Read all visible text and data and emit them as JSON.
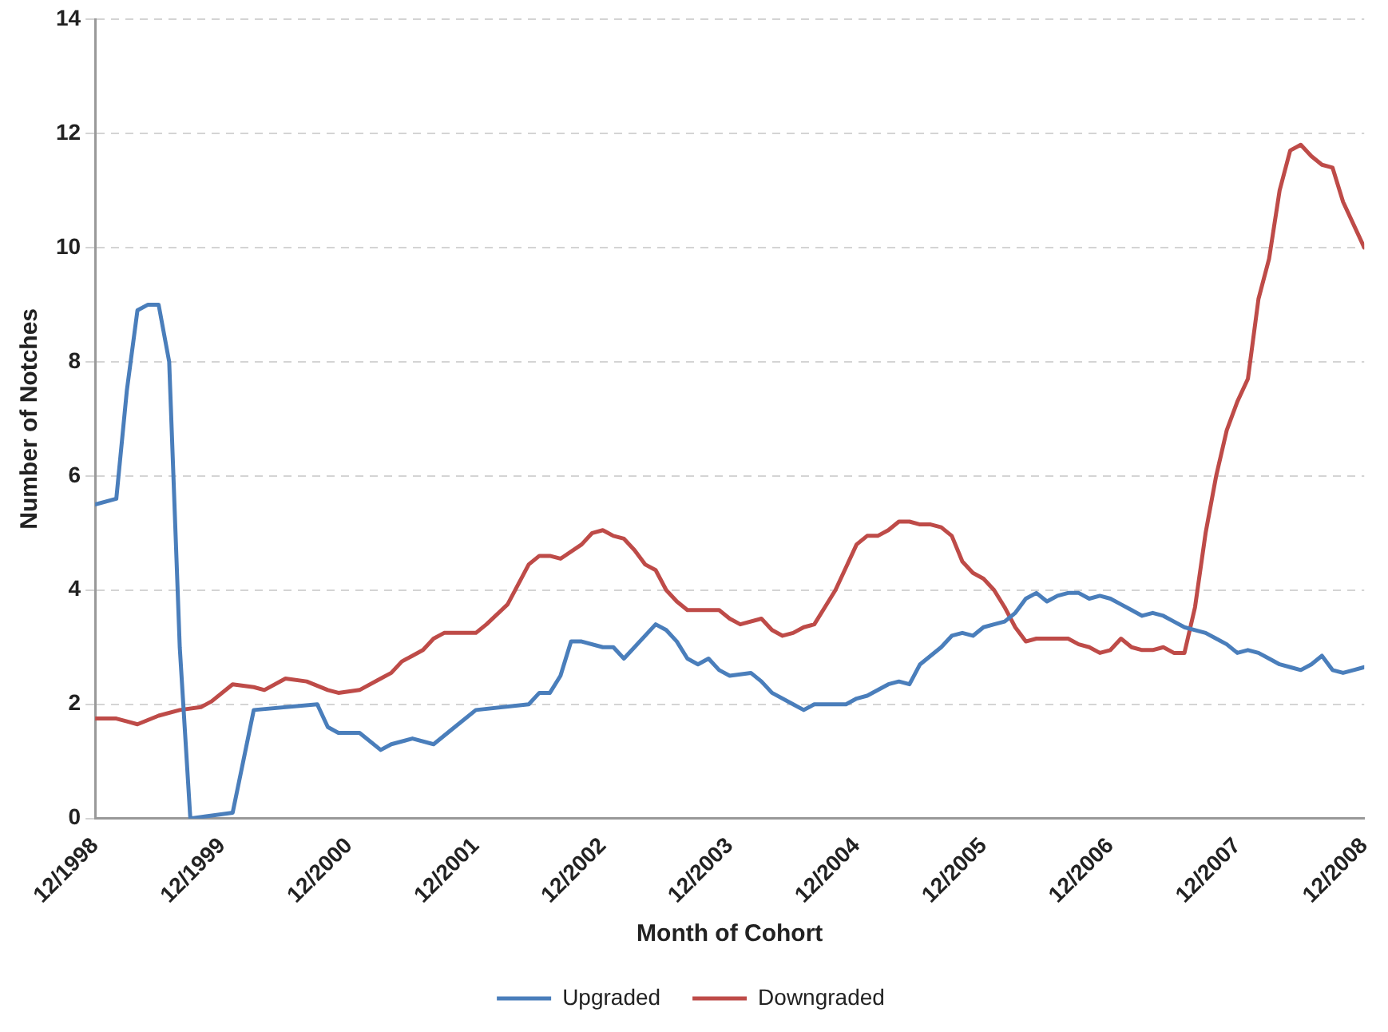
{
  "chart_data": {
    "type": "line",
    "xlabel": "Month of Cohort",
    "ylabel": "Number of Notches",
    "xlim": [
      "1998-12",
      "2008-12"
    ],
    "xticks": [
      {
        "value": "1998-12",
        "label": "12/1998"
      },
      {
        "value": "1999-12",
        "label": "12/1999"
      },
      {
        "value": "2000-12",
        "label": "12/2000"
      },
      {
        "value": "2001-12",
        "label": "12/2001"
      },
      {
        "value": "2002-12",
        "label": "12/2002"
      },
      {
        "value": "2003-12",
        "label": "12/2003"
      },
      {
        "value": "2004-12",
        "label": "12/2004"
      },
      {
        "value": "2005-12",
        "label": "12/2005"
      },
      {
        "value": "2006-12",
        "label": "12/2006"
      },
      {
        "value": "2007-12",
        "label": "12/2007"
      },
      {
        "value": "2008-12",
        "label": "12/2008"
      }
    ],
    "ylim": [
      0,
      14
    ],
    "yticks": [
      0,
      2,
      4,
      6,
      8,
      10,
      12,
      14
    ],
    "grid": "y",
    "legend": "bottom",
    "marker": "none",
    "line_style": "solid",
    "series": [
      {
        "name": "Upgraded",
        "color": "#4a7ebb",
        "x": [
          "1998-12",
          "1999-02",
          "1999-03",
          "1999-04",
          "1999-05",
          "1999-06",
          "1999-07",
          "1999-08",
          "1999-09",
          "2000-01",
          "2000-02",
          "2000-03",
          "2000-09",
          "2000-10",
          "2000-11",
          "2001-01",
          "2001-03",
          "2001-04",
          "2001-06",
          "2001-08",
          "2001-10",
          "2001-12",
          "2002-05",
          "2002-06",
          "2002-07",
          "2002-08",
          "2002-09",
          "2002-10",
          "2002-12",
          "2003-01",
          "2003-02",
          "2003-05",
          "2003-06",
          "2003-07",
          "2003-08",
          "2003-09",
          "2003-10",
          "2003-11",
          "2003-12",
          "2004-02",
          "2004-03",
          "2004-04",
          "2004-06",
          "2004-07",
          "2004-08",
          "2004-11",
          "2004-12",
          "2005-01",
          "2005-03",
          "2005-04",
          "2005-05",
          "2005-06",
          "2005-08",
          "2005-09",
          "2005-10",
          "2005-11",
          "2005-12",
          "2006-01",
          "2006-02",
          "2006-03",
          "2006-04",
          "2006-05",
          "2006-06",
          "2006-07",
          "2006-08",
          "2006-09",
          "2006-10",
          "2006-11",
          "2006-12",
          "2007-01",
          "2007-02",
          "2007-03",
          "2007-04",
          "2007-05",
          "2007-06",
          "2007-07",
          "2007-08",
          "2007-09",
          "2007-10",
          "2007-11",
          "2007-12",
          "2008-01",
          "2008-02",
          "2008-03",
          "2008-04",
          "2008-05",
          "2008-06",
          "2008-07",
          "2008-08",
          "2008-09",
          "2008-10",
          "2008-11",
          "2008-12"
        ],
        "values": [
          5.5,
          5.6,
          7.5,
          8.9,
          9.0,
          9.0,
          8.0,
          3.0,
          0,
          0.1,
          1.0,
          1.9,
          2.0,
          1.6,
          1.5,
          1.5,
          1.2,
          1.3,
          1.4,
          1.3,
          1.6,
          1.9,
          2.0,
          2.2,
          2.2,
          2.5,
          3.1,
          3.1,
          3.0,
          3.0,
          2.8,
          3.4,
          3.3,
          3.1,
          2.8,
          2.7,
          2.8,
          2.6,
          2.5,
          2.55,
          2.4,
          2.2,
          2.0,
          1.9,
          2.0,
          2.0,
          2.1,
          2.15,
          2.35,
          2.4,
          2.35,
          2.7,
          3.0,
          3.2,
          3.25,
          3.2,
          3.35,
          3.4,
          3.45,
          3.6,
          3.85,
          3.95,
          3.8,
          3.9,
          3.95,
          3.95,
          3.85,
          3.9,
          3.85,
          3.75,
          3.65,
          3.55,
          3.6,
          3.55,
          3.45,
          3.35,
          3.3,
          3.25,
          3.15,
          3.05,
          2.9,
          2.95,
          2.9,
          2.8,
          2.7,
          2.65,
          2.6,
          2.7,
          2.85,
          2.6,
          2.55,
          2.6,
          2.65
        ]
      },
      {
        "name": "Downgraded",
        "color": "#be4b48",
        "x": [
          "1998-12",
          "1999-02",
          "1999-03",
          "1999-04",
          "1999-06",
          "1999-08",
          "1999-10",
          "1999-11",
          "2000-01",
          "2000-03",
          "2000-04",
          "2000-06",
          "2000-08",
          "2000-10",
          "2000-11",
          "2001-01",
          "2001-03",
          "2001-04",
          "2001-05",
          "2001-06",
          "2001-07",
          "2001-08",
          "2001-09",
          "2001-12",
          "2002-01",
          "2002-03",
          "2002-05",
          "2002-06",
          "2002-07",
          "2002-08",
          "2002-10",
          "2002-11",
          "2002-12",
          "2003-01",
          "2003-02",
          "2003-03",
          "2003-04",
          "2003-05",
          "2003-06",
          "2003-07",
          "2003-08",
          "2003-11",
          "2003-12",
          "2004-01",
          "2004-03",
          "2004-04",
          "2004-05",
          "2004-06",
          "2004-07",
          "2004-08",
          "2004-09",
          "2004-10",
          "2004-11",
          "2004-12",
          "2005-01",
          "2005-02",
          "2005-03",
          "2005-04",
          "2005-05",
          "2005-06",
          "2005-07",
          "2005-08",
          "2005-09",
          "2005-10",
          "2005-11",
          "2005-12",
          "2006-01",
          "2006-02",
          "2006-03",
          "2006-04",
          "2006-05",
          "2006-08",
          "2006-09",
          "2006-10",
          "2006-11",
          "2006-12",
          "2007-01",
          "2007-02",
          "2007-03",
          "2007-04",
          "2007-05",
          "2007-06",
          "2007-07",
          "2007-08",
          "2007-09",
          "2007-10",
          "2007-11",
          "2007-12",
          "2008-01",
          "2008-02",
          "2008-03",
          "2008-04",
          "2008-05",
          "2008-06",
          "2008-07",
          "2008-08",
          "2008-09",
          "2008-10",
          "2008-12"
        ],
        "values": [
          1.75,
          1.75,
          1.7,
          1.65,
          1.8,
          1.9,
          1.95,
          2.05,
          2.35,
          2.3,
          2.25,
          2.45,
          2.4,
          2.25,
          2.2,
          2.25,
          2.45,
          2.55,
          2.75,
          2.85,
          2.95,
          3.15,
          3.25,
          3.25,
          3.4,
          3.75,
          4.45,
          4.6,
          4.6,
          4.55,
          4.8,
          5.0,
          5.05,
          4.95,
          4.9,
          4.7,
          4.45,
          4.35,
          4.0,
          3.8,
          3.65,
          3.65,
          3.5,
          3.4,
          3.5,
          3.3,
          3.2,
          3.25,
          3.35,
          3.4,
          3.7,
          4.0,
          4.4,
          4.8,
          4.95,
          4.95,
          5.05,
          5.2,
          5.2,
          5.15,
          5.15,
          5.1,
          4.95,
          4.5,
          4.3,
          4.2,
          4.0,
          3.7,
          3.35,
          3.1,
          3.15,
          3.15,
          3.05,
          3.0,
          2.9,
          2.95,
          3.15,
          3.0,
          2.95,
          2.95,
          3.0,
          2.9,
          2.9,
          3.7,
          5.0,
          6.0,
          6.8,
          7.3,
          7.7,
          9.1,
          9.8,
          11.0,
          11.7,
          11.8,
          11.6,
          11.45,
          11.4,
          10.8,
          10.0
        ]
      }
    ]
  }
}
